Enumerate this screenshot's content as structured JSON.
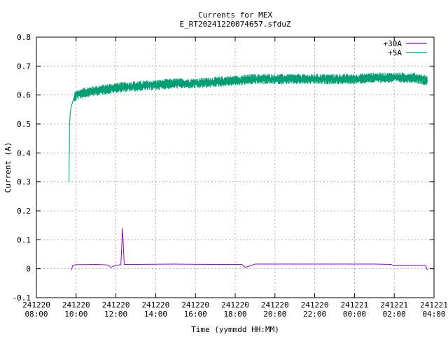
{
  "chart_data": {
    "type": "line",
    "title": "Currents for MEX",
    "subtitle": "E_RT20241220074657.sfduZ",
    "xlabel": "Time (yymmdd HH:MM)",
    "ylabel": "Current (A)",
    "xlim": [
      "2024-12-20 08:00",
      "2024-12-21 04:00"
    ],
    "ylim": [
      -0.1,
      0.8
    ],
    "grid": true,
    "legend_position": "top-right",
    "x_ticks": [
      {
        "t": "2024-12-20 08:00",
        "line1": "241220",
        "line2": "08:00"
      },
      {
        "t": "2024-12-20 10:00",
        "line1": "241220",
        "line2": "10:00"
      },
      {
        "t": "2024-12-20 12:00",
        "line1": "241220",
        "line2": "12:00"
      },
      {
        "t": "2024-12-20 14:00",
        "line1": "241220",
        "line2": "14:00"
      },
      {
        "t": "2024-12-20 16:00",
        "line1": "241220",
        "line2": "16:00"
      },
      {
        "t": "2024-12-20 18:00",
        "line1": "241220",
        "line2": "18:00"
      },
      {
        "t": "2024-12-20 20:00",
        "line1": "241220",
        "line2": "20:00"
      },
      {
        "t": "2024-12-20 22:00",
        "line1": "241220",
        "line2": "22:00"
      },
      {
        "t": "2024-12-21 00:00",
        "line1": "241221",
        "line2": "00:00"
      },
      {
        "t": "2024-12-21 02:00",
        "line1": "241221",
        "line2": "02:00"
      },
      {
        "t": "2024-12-21 04:00",
        "line1": "241221",
        "line2": "04:00"
      }
    ],
    "y_ticks": [
      "-0.1",
      "0",
      "0.1",
      "0.2",
      "0.3",
      "0.4",
      "0.5",
      "0.6",
      "0.7",
      "0.8"
    ],
    "series": [
      {
        "name": "+30A",
        "color": "#9400d3",
        "x": [
          "2024-12-20 09:45",
          "2024-12-20 09:50",
          "2024-12-20 10:00",
          "2024-12-20 11:00",
          "2024-12-20 11:35",
          "2024-12-20 11:45",
          "2024-12-20 12:00",
          "2024-12-20 12:15",
          "2024-12-20 12:20",
          "2024-12-20 12:25",
          "2024-12-20 13:00",
          "2024-12-20 15:00",
          "2024-12-20 17:00",
          "2024-12-20 18:20",
          "2024-12-20 18:30",
          "2024-12-20 18:40",
          "2024-12-20 19:00",
          "2024-12-20 21:00",
          "2024-12-20 23:00",
          "2024-12-21 01:00",
          "2024-12-21 01:50",
          "2024-12-21 02:00",
          "2024-12-21 03:00",
          "2024-12-21 03:35",
          "2024-12-21 03:40"
        ],
        "y": [
          -0.005,
          0.012,
          0.014,
          0.015,
          0.013,
          0.005,
          0.012,
          0.014,
          0.14,
          0.015,
          0.015,
          0.016,
          0.015,
          0.015,
          0.005,
          0.008,
          0.016,
          0.016,
          0.016,
          0.016,
          0.015,
          0.01,
          0.011,
          0.011,
          -0.005
        ]
      },
      {
        "name": "+5A",
        "color": "#009e73",
        "noise": 0.012,
        "x": [
          "2024-12-20 09:38",
          "2024-12-20 09:40",
          "2024-12-20 09:42",
          "2024-12-20 09:45",
          "2024-12-20 09:50",
          "2024-12-20 10:00",
          "2024-12-20 10:30",
          "2024-12-20 11:00",
          "2024-12-20 12:00",
          "2024-12-20 13:00",
          "2024-12-20 14:00",
          "2024-12-20 15:00",
          "2024-12-20 16:00",
          "2024-12-20 17:00",
          "2024-12-20 18:00",
          "2024-12-20 19:00",
          "2024-12-20 20:00",
          "2024-12-20 21:00",
          "2024-12-20 22:00",
          "2024-12-20 23:00",
          "2024-12-21 00:00",
          "2024-12-21 01:00",
          "2024-12-21 02:00",
          "2024-12-21 03:00",
          "2024-12-21 03:40"
        ],
        "y": [
          0.3,
          0.5,
          0.54,
          0.56,
          0.58,
          0.6,
          0.61,
          0.615,
          0.625,
          0.63,
          0.635,
          0.64,
          0.64,
          0.645,
          0.65,
          0.655,
          0.655,
          0.655,
          0.655,
          0.655,
          0.655,
          0.66,
          0.66,
          0.66,
          0.65
        ]
      }
    ]
  }
}
